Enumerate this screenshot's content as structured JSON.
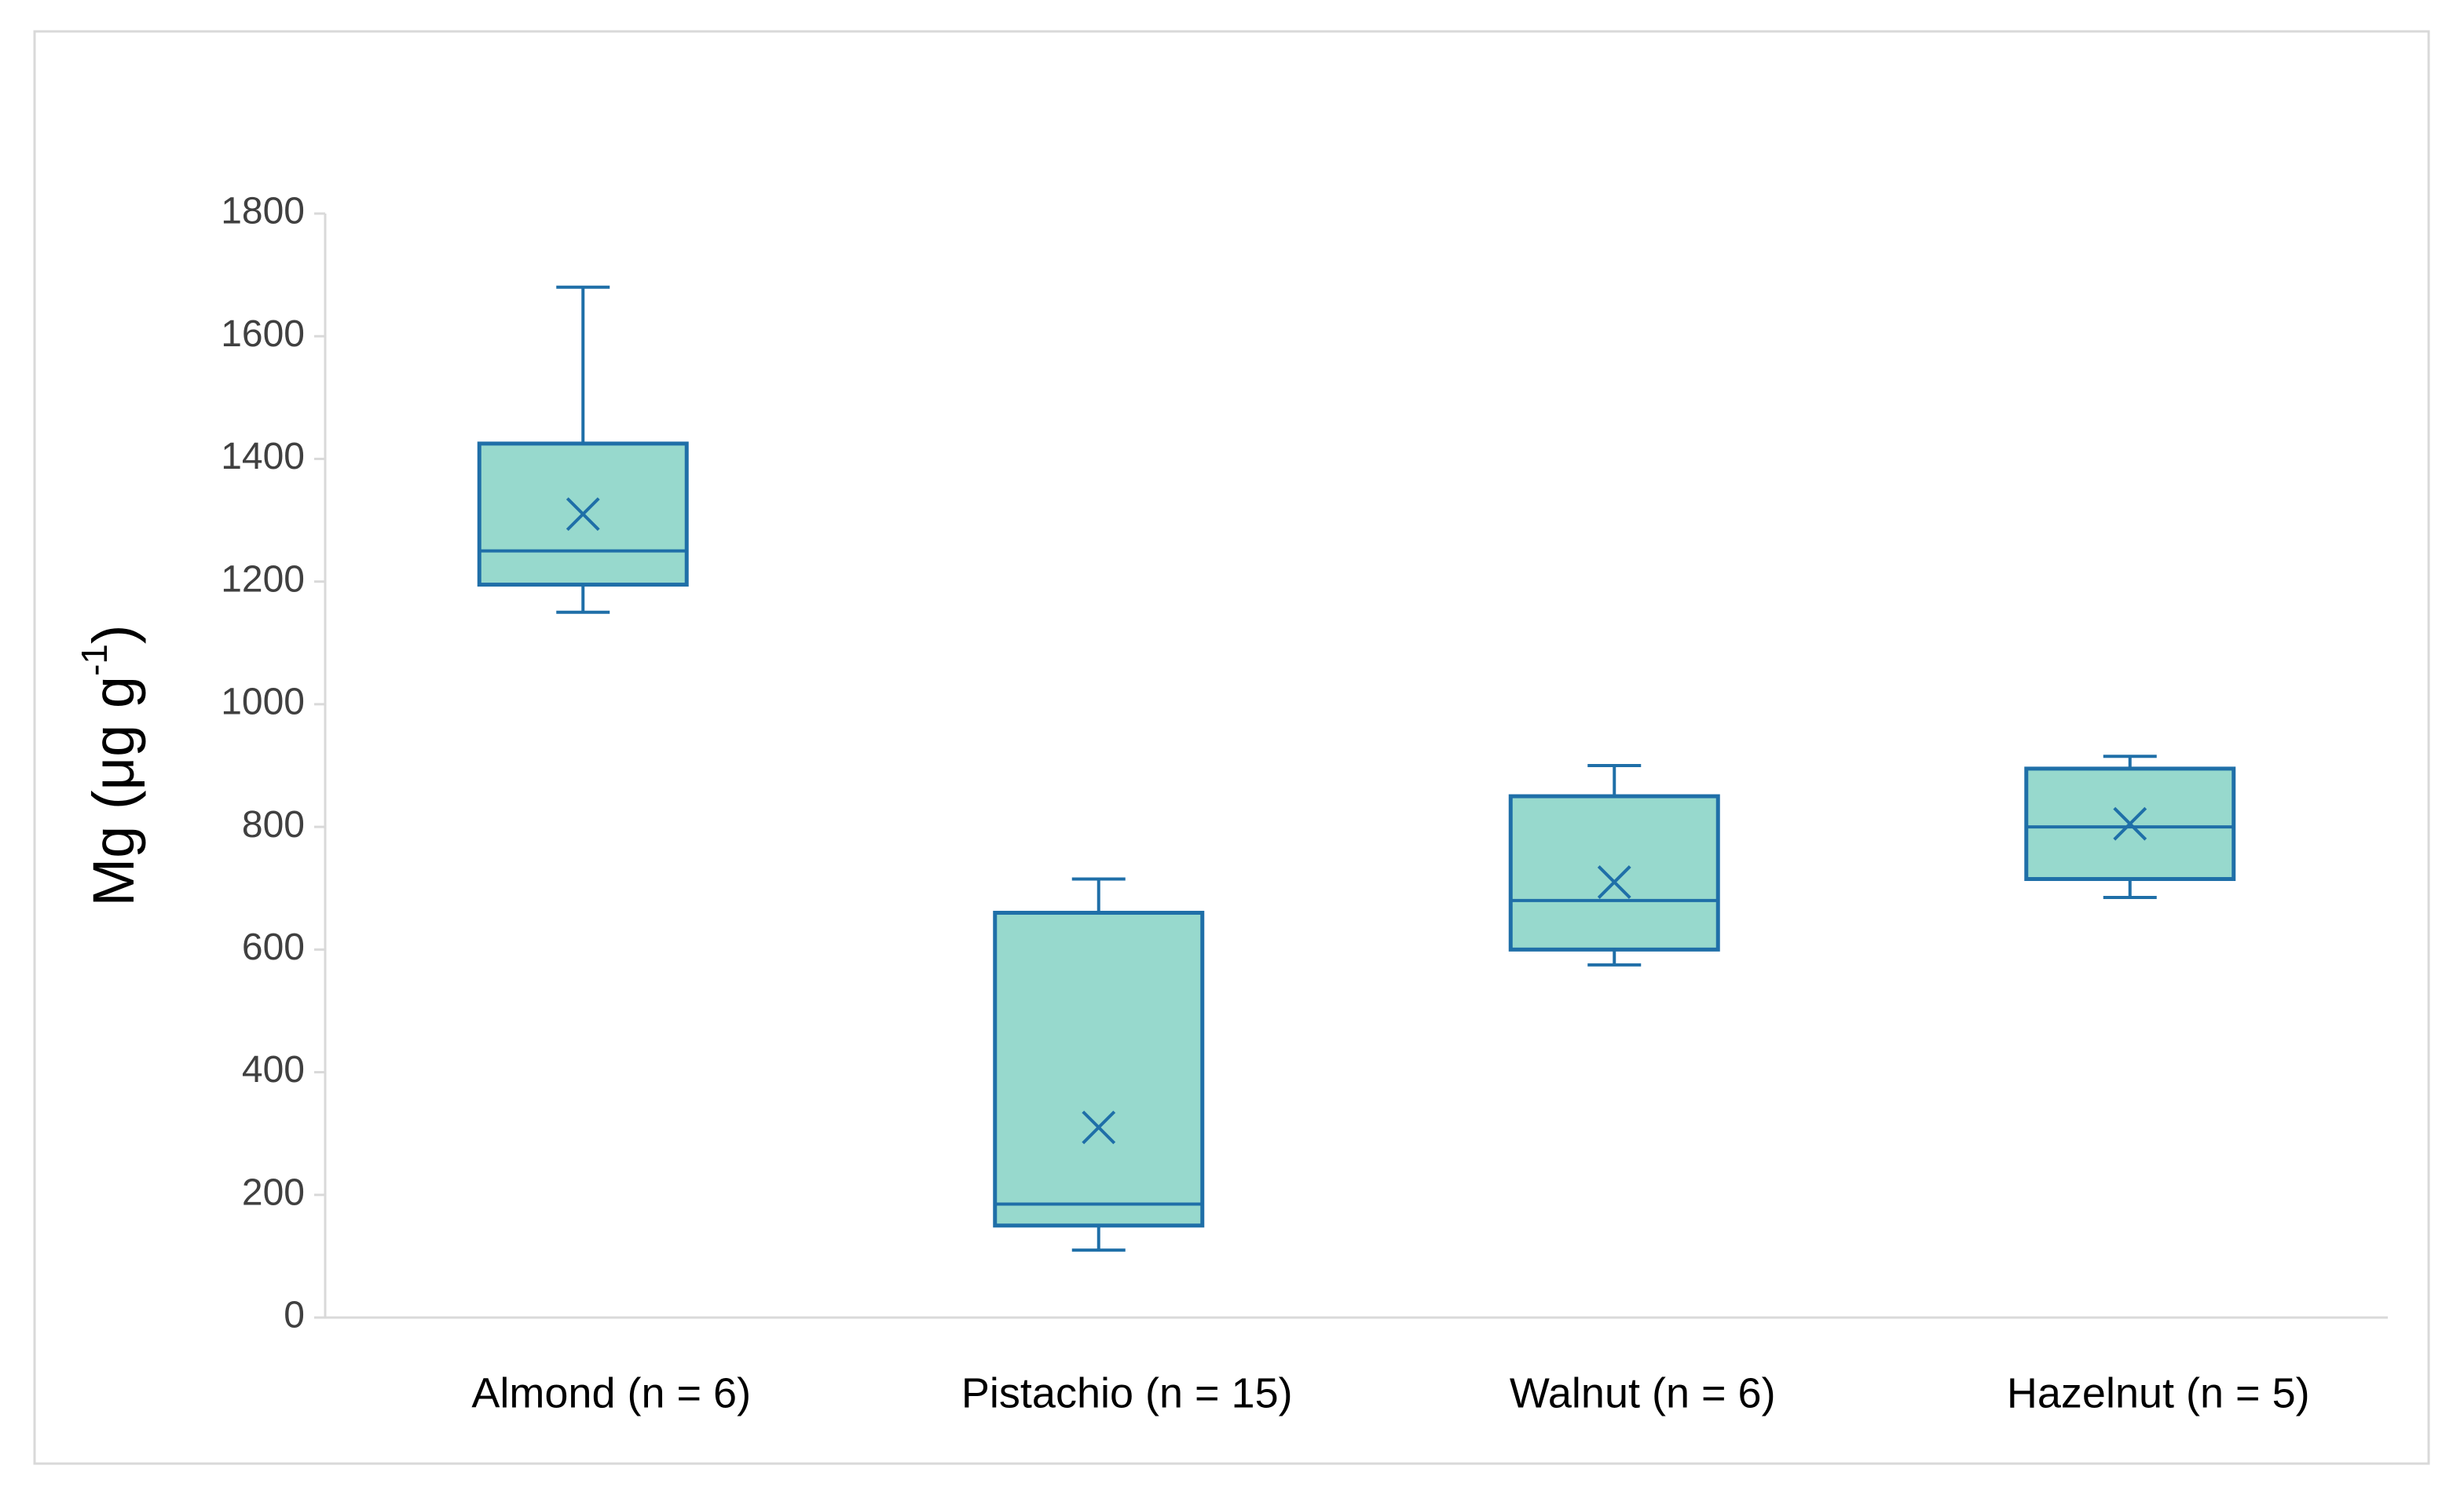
{
  "chart_data": {
    "type": "box",
    "y_label": [
      "Mg (μg g",
      "-1",
      ")"
    ],
    "categories": [
      "Almond (n = 6)",
      "Pistachio (n = 15)",
      "Walnut (n = 6)",
      "Hazelnut (n = 5)"
    ],
    "min": [
      1150,
      110,
      575,
      685
    ],
    "q1": [
      1195,
      150,
      600,
      715
    ],
    "median": [
      1250,
      185,
      680,
      800
    ],
    "q3": [
      1425,
      660,
      850,
      895
    ],
    "max": [
      1680,
      715,
      900,
      915
    ],
    "mean": [
      1310,
      310,
      710,
      805
    ],
    "color": "#97d9cd",
    "edge_color": "#1f6fa8",
    "ylim": [
      0,
      1800
    ],
    "yticks": [
      0,
      200,
      400,
      600,
      800,
      1000,
      1200,
      1400,
      1600,
      1800
    ],
    "grid": false
  }
}
